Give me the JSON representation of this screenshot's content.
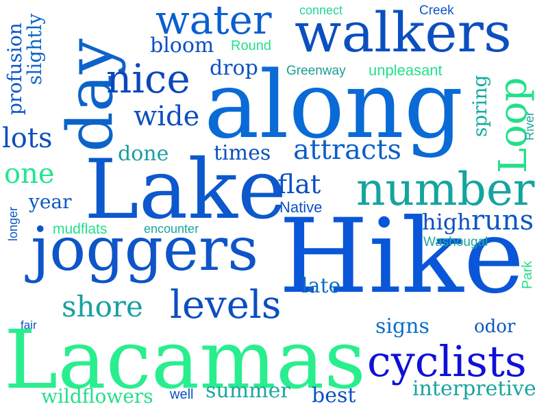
{
  "cloud": {
    "words": {
      "hike": "Hike",
      "lacamas": "Lacamas",
      "along": "along",
      "lake": "Lake",
      "joggers": "joggers",
      "walkers": "walkers",
      "day": "day",
      "number": "number",
      "cyclists": "cyclists",
      "water": "water",
      "nice": "nice",
      "loop": "Loop",
      "levels": "levels",
      "attracts": "attracts",
      "shore": "shore",
      "wide": "wide",
      "lots": "lots",
      "one": "one",
      "profusion": "profusion",
      "slightly": "slightly",
      "bloom": "bloom",
      "drop": "drop",
      "connect": "connect",
      "creek": "Creek",
      "round": "Round",
      "greenway": "Greenway",
      "unpleasant": "unpleasant",
      "spring": "spring",
      "river": "River",
      "done": "done",
      "times": "times",
      "flat": "flat",
      "native": "Native",
      "year": "year",
      "longer": "longer",
      "mudflats": "mudflats",
      "encounter": "encounter",
      "high": "high",
      "runs": "runs",
      "washougal": "Washougal",
      "park": "Park",
      "late": "late",
      "signs": "signs",
      "odor": "odor",
      "fair": "fair",
      "wildflowers": "wildflowers",
      "well": "well",
      "summer": "summer",
      "best": "best",
      "interpretive": "interpretive"
    }
  }
}
